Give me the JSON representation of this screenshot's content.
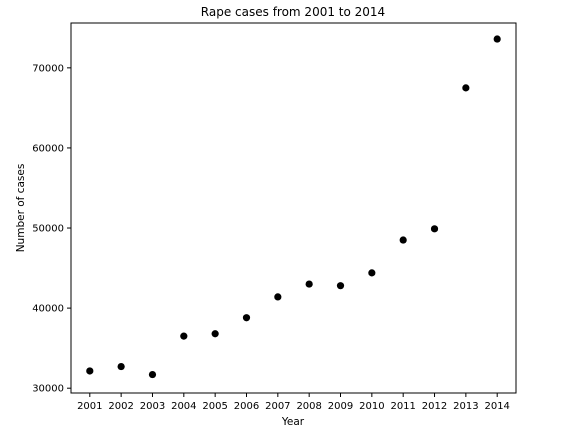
{
  "chart_data": {
    "type": "scatter",
    "title": "Rape cases from 2001 to 2014",
    "xlabel": "Year",
    "ylabel": "Number of cases",
    "x": [
      2001,
      2002,
      2003,
      2004,
      2005,
      2006,
      2007,
      2008,
      2009,
      2010,
      2011,
      2012,
      2013,
      2014
    ],
    "y": [
      32150,
      32700,
      31700,
      36500,
      36800,
      38800,
      41400,
      43000,
      42800,
      44400,
      48500,
      49900,
      67500,
      73600
    ],
    "xticks": [
      "2001",
      "2002",
      "2003",
      "2004",
      "2005",
      "2006",
      "2007",
      "2008",
      "2009",
      "2010",
      "2011",
      "2012",
      "2013",
      "2014"
    ],
    "yticks": [
      "30000",
      "40000",
      "50000",
      "60000",
      "70000"
    ],
    "ylim": [
      29400,
      75600
    ],
    "xlim": [
      2000.4,
      2014.6
    ],
    "grid": false,
    "marker_color": "#000000"
  }
}
